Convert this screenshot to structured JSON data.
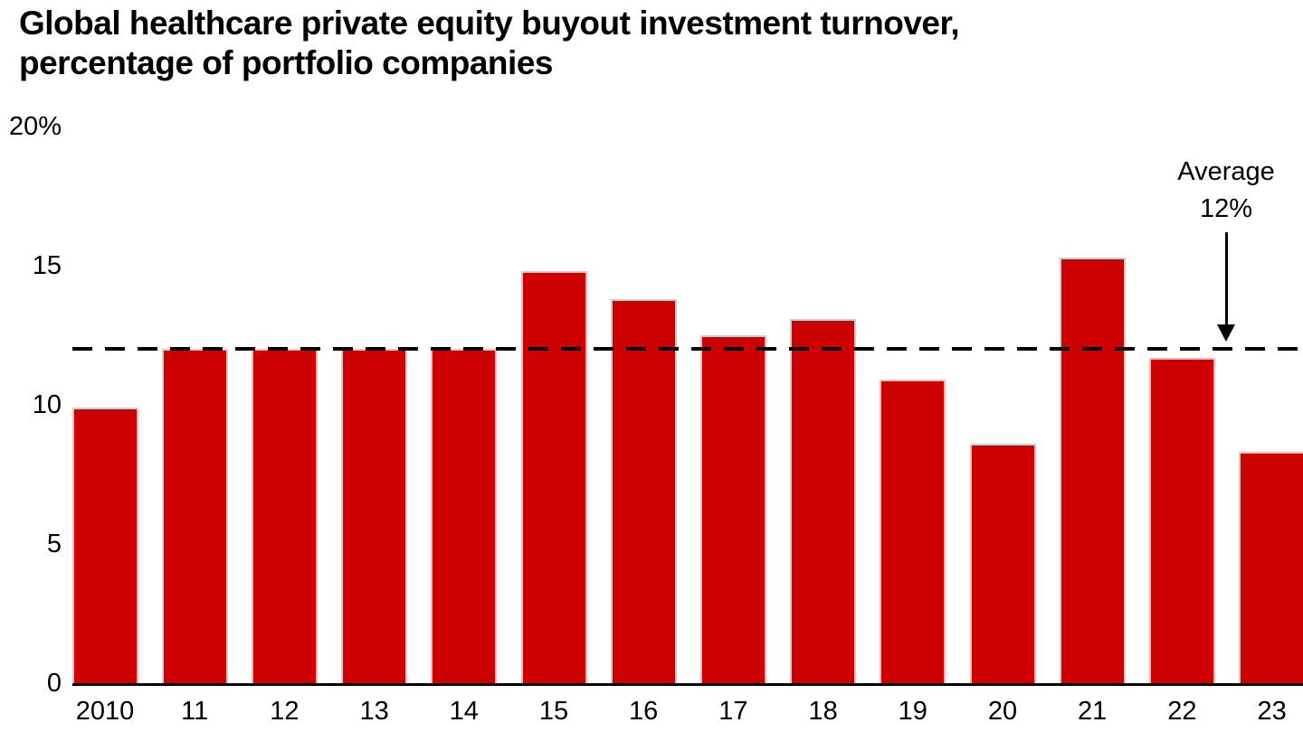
{
  "chart_data": {
    "type": "bar",
    "title": "Global healthcare private equity buyout investment turnover,\npercentage of portfolio companies",
    "categories": [
      "2010",
      "11",
      "12",
      "13",
      "14",
      "15",
      "16",
      "17",
      "18",
      "19",
      "20",
      "21",
      "22",
      "23"
    ],
    "values": [
      9.9,
      12.0,
      12.0,
      12.0,
      12.0,
      14.8,
      13.8,
      12.5,
      13.1,
      10.9,
      8.6,
      15.3,
      11.7,
      8.3
    ],
    "xlabel": "",
    "ylabel": "",
    "ylim": [
      0,
      20
    ],
    "y_ticks": [
      {
        "label": "0",
        "value": 0
      },
      {
        "label": "5",
        "value": 5
      },
      {
        "label": "10",
        "value": 10
      },
      {
        "label": "15",
        "value": 15
      },
      {
        "label": "20%",
        "value": 20
      }
    ],
    "average_line": {
      "value": 12,
      "label": "Average\n12%"
    },
    "grid": "off",
    "legend_position": "none",
    "colors": {
      "bar_fill": "#cc0000",
      "bar_stroke": "#f2bdbd",
      "axis": "#000000",
      "text": "#000000",
      "background": "#ffffff"
    }
  }
}
